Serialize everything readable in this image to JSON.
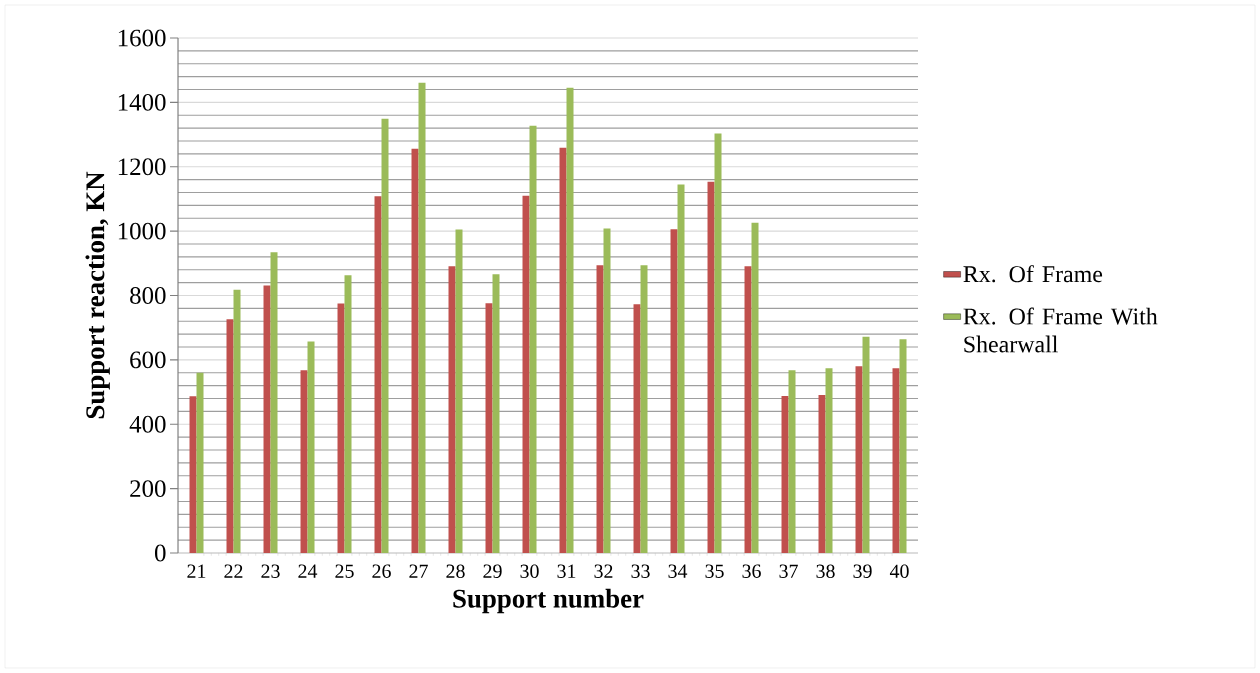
{
  "chart_data": {
    "type": "bar",
    "xlabel": "Support number",
    "ylabel": "Support reaction, KN",
    "categories": [
      "21",
      "22",
      "23",
      "24",
      "25",
      "26",
      "27",
      "28",
      "29",
      "30",
      "31",
      "32",
      "33",
      "34",
      "35",
      "36",
      "37",
      "38",
      "39",
      "40"
    ],
    "series": [
      {
        "name": "Rx. Of Frame",
        "color": "#c0504d",
        "values": [
          487,
          726,
          831,
          568,
          775,
          1108,
          1256,
          891,
          776,
          1110,
          1259,
          894,
          773,
          1006,
          1153,
          891,
          488,
          491,
          580,
          574
        ]
      },
      {
        "name": "Rx. Of Frame With Shearwall",
        "color": "#9bbb59",
        "values": [
          560,
          818,
          934,
          657,
          863,
          1349,
          1461,
          1005,
          866,
          1327,
          1445,
          1008,
          894,
          1145,
          1303,
          1026,
          568,
          574,
          672,
          664
        ]
      }
    ],
    "ylim": [
      0,
      1600
    ],
    "yticks": [
      0,
      200,
      400,
      600,
      800,
      1000,
      1200,
      1400,
      1600
    ],
    "grid": "y",
    "legend": "right"
  }
}
